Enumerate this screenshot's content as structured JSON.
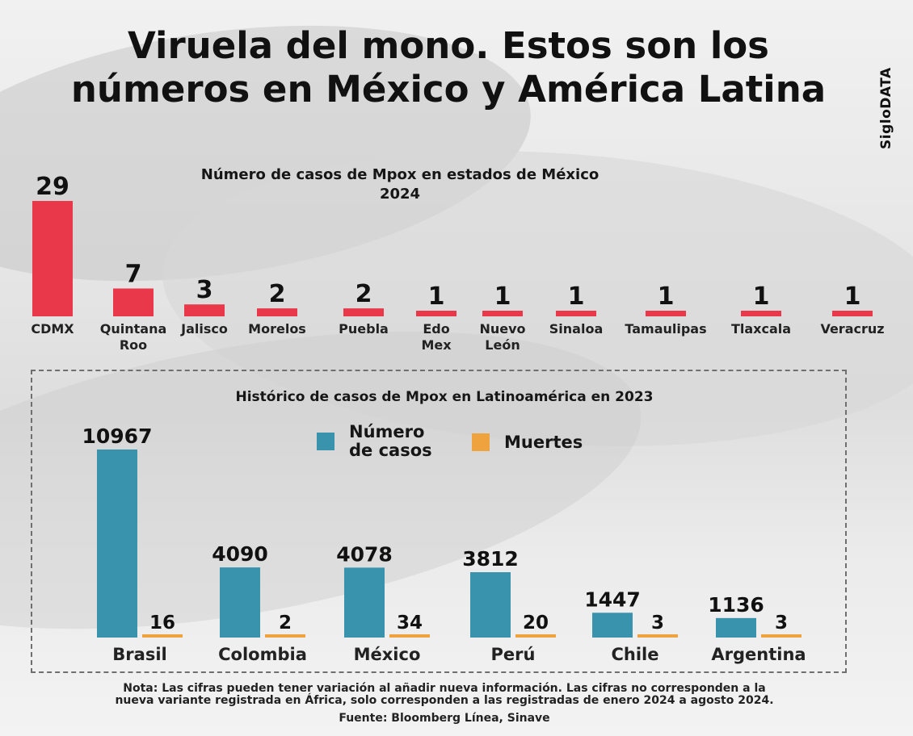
{
  "title_line1": "Viruela del mono. Estos son los",
  "title_line2": "números en México y América Latina",
  "brand": "SigloDATA",
  "chart_data": [
    {
      "type": "bar",
      "title": "Número de casos de Mpox en estados de México",
      "subtitle": "2024",
      "categories": [
        "CDMX",
        "Quintana Roo",
        "Jalisco",
        "Morelos",
        "Puebla",
        "Edo Mex",
        "Nuevo León",
        "Sinaloa",
        "Tamaulipas",
        "Tlaxcala",
        "Veracruz"
      ],
      "category_lines": [
        [
          "CDMX"
        ],
        [
          "Quintana",
          "Roo"
        ],
        [
          "Jalisco"
        ],
        [
          "Morelos"
        ],
        [
          "Puebla"
        ],
        [
          "Edo",
          "Mex"
        ],
        [
          "Nuevo",
          "León"
        ],
        [
          "Sinaloa"
        ],
        [
          "Tamaulipas"
        ],
        [
          "Tlaxcala"
        ],
        [
          "Veracruz"
        ]
      ],
      "values": [
        29,
        7,
        3,
        2,
        2,
        1,
        1,
        1,
        1,
        1,
        1
      ],
      "color": "#e8384a"
    },
    {
      "type": "bar",
      "title": "Histórico de casos de Mpox en Latinoamérica en 2023",
      "categories": [
        "Brasil",
        "Colombia",
        "México",
        "Perú",
        "Chile",
        "Argentina"
      ],
      "series": [
        {
          "name": "Número de casos",
          "name_lines": [
            "Número",
            "de casos"
          ],
          "color": "#3a93ad",
          "values": [
            10967,
            4090,
            4078,
            3812,
            1447,
            1136
          ]
        },
        {
          "name": "Muertes",
          "name_lines": [
            "Muertes"
          ],
          "color": "#eea33e",
          "values": [
            16,
            2,
            34,
            20,
            3,
            3
          ]
        }
      ]
    }
  ],
  "note_line1": "Nota: Las cifras pueden tener variación al añadir nueva información. Las cifras no corresponden a la",
  "note_line2": "nueva variante registrada en África, solo corresponden a las registradas de enero 2024 a agosto 2024.",
  "source": "Fuente: Bloomberg Línea, Sinave"
}
